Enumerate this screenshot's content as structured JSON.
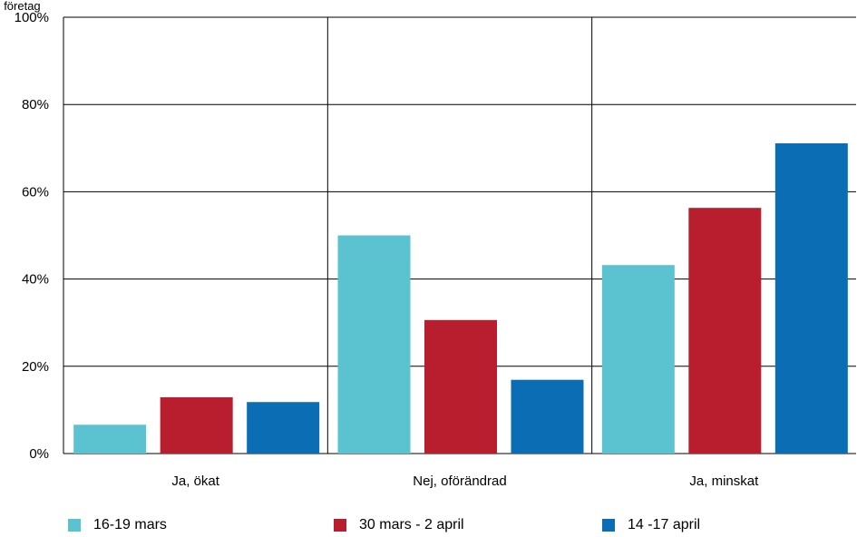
{
  "chart_data": {
    "type": "bar",
    "ylabel": "Andel företag",
    "ylim": [
      0,
      100
    ],
    "yticks": [
      "0%",
      "20%",
      "40%",
      "60%",
      "80%",
      "100%"
    ],
    "categories": [
      "Ja, ökat",
      "Nej, oförändrad",
      "Ja, minskat"
    ],
    "series": [
      {
        "name": "16-19 mars",
        "color": "#5bc2d0",
        "values": [
          6.6,
          50.0,
          43.2
        ]
      },
      {
        "name": "30 mars - 2 april",
        "color": "#b81e2d",
        "values": [
          12.9,
          30.6,
          56.3
        ]
      },
      {
        "name": "14 -17 april",
        "color": "#0b6eb5",
        "values": [
          11.8,
          16.9,
          71.1
        ]
      }
    ],
    "grid": true,
    "legend_position": "bottom"
  }
}
